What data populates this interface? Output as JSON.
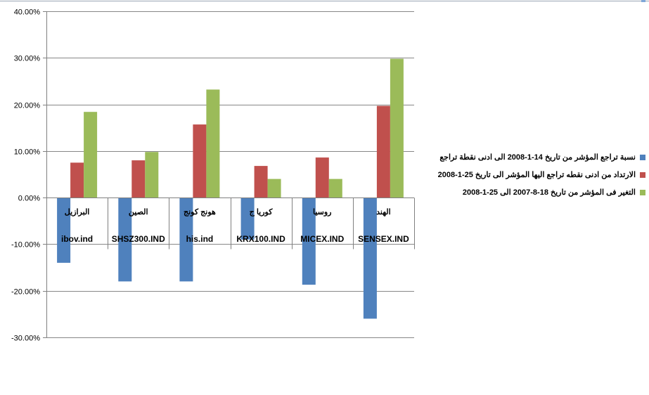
{
  "colors": {
    "series": [
      "#4f81bd",
      "#c0504d",
      "#9bbb59"
    ],
    "grid": "#878787",
    "axis": "#808080",
    "text": "#000000"
  },
  "chart_data": {
    "type": "bar",
    "title": "",
    "xlabel": "",
    "ylabel": "",
    "ylim": [
      -0.3,
      0.4
    ],
    "y_ticks": [
      0.4,
      0.3,
      0.2,
      0.1,
      0.0,
      -0.1,
      -0.2,
      -0.3
    ],
    "y_tick_labels": [
      "40.00%",
      "30.00%",
      "20.00%",
      "10.00%",
      "0.00%",
      "-10.00%",
      "-20.00%",
      "-30.00%"
    ],
    "grid": true,
    "legend_position": "right",
    "categories": [
      {
        "country": "البرازيل",
        "code": "ibov.ind"
      },
      {
        "country": "الصين",
        "code": "SHSZ300.IND"
      },
      {
        "country": "هونج كونج",
        "code": "his.ind"
      },
      {
        "country": "كوريا ج",
        "code": "KRX100.IND"
      },
      {
        "country": "روسيا",
        "code": "MICEX.IND"
      },
      {
        "country": "الهند",
        "code": "SENSEX.IND"
      }
    ],
    "series": [
      {
        "name": "نسبة تراجع المؤشر من تاريخ 14-1-2008 الى ادنى نقطة تراجع",
        "values": [
          -0.14,
          -0.18,
          -0.18,
          -0.09,
          -0.187,
          -0.26
        ]
      },
      {
        "name": "الارتداد من ادنى نقطه تراجع اليها المؤشر الى تاريخ 25-1-2008",
        "values": [
          0.075,
          0.08,
          0.157,
          0.068,
          0.086,
          0.197
        ]
      },
      {
        "name": "التغير فى المؤشر من تاريخ 18-8-2007 الى 25-1-2008",
        "values": [
          0.184,
          0.098,
          0.232,
          0.04,
          0.04,
          0.298
        ]
      }
    ]
  }
}
